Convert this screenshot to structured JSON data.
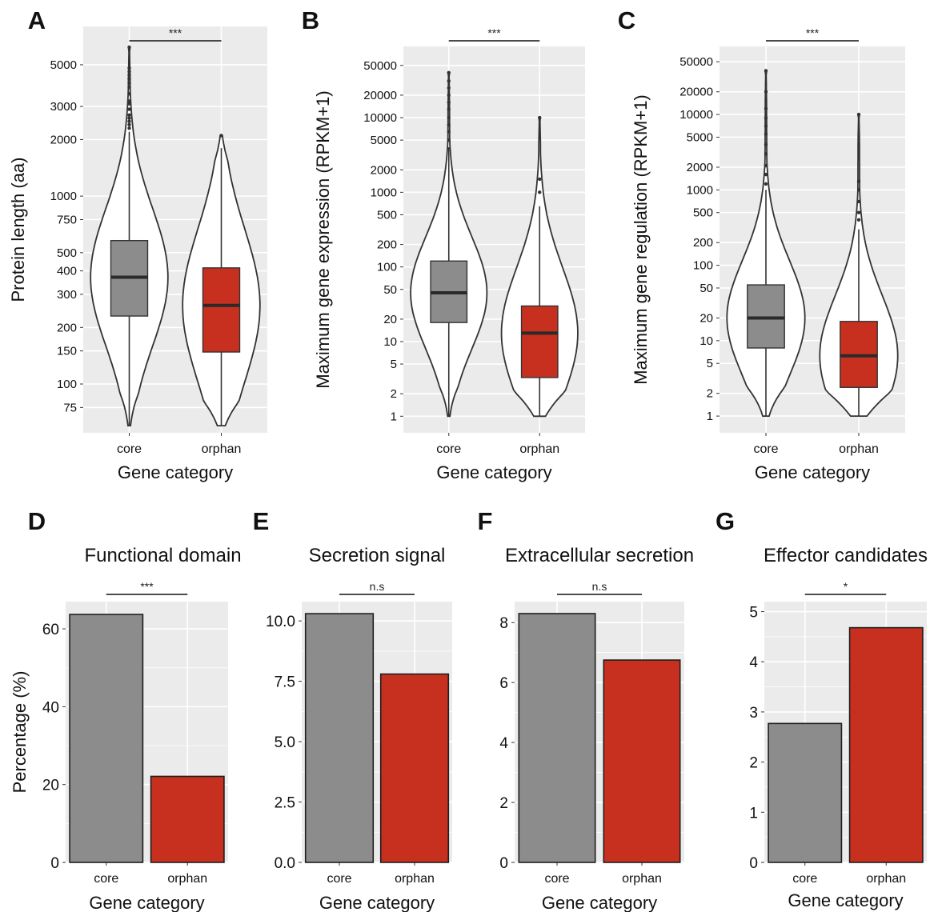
{
  "colors": {
    "core": "#8c8c8c",
    "orphan": "#c7301f",
    "panel_bg": "#ebebeb",
    "grid": "#ffffff",
    "outline": "#333333"
  },
  "panels": [
    {
      "letter": "A"
    },
    {
      "letter": "B"
    },
    {
      "letter": "C"
    },
    {
      "letter": "D"
    },
    {
      "letter": "E"
    },
    {
      "letter": "F"
    },
    {
      "letter": "G"
    }
  ],
  "chart_data": [
    {
      "panel": "A",
      "type": "violin",
      "title": "",
      "xlabel": "Gene category",
      "ylabel": "Protein length (aa)",
      "yscale": "log",
      "categories": [
        "core",
        "orphan"
      ],
      "yticks": [
        75,
        100,
        150,
        200,
        300,
        400,
        500,
        750,
        1000,
        2000,
        3000,
        5000
      ],
      "yticklabels": [
        "75",
        "100",
        "150",
        "200",
        "300",
        "400",
        "500",
        "750",
        "1000",
        "2000",
        "3000",
        "5000"
      ],
      "ylim": [
        55,
        8000
      ],
      "boxplots": [
        {
          "category": "core",
          "q1": 230,
          "median": 370,
          "q3": 580,
          "whisker_low": 60,
          "whisker_high": 2200
        },
        {
          "category": "orphan",
          "q1": 148,
          "median": 262,
          "q3": 415,
          "whisker_low": 60,
          "whisker_high": 1800
        }
      ],
      "violin_max": [
        6200,
        2100
      ],
      "outliers": [
        {
          "category": "core",
          "values": [
            2300,
            2400,
            2500,
            2600,
            2700,
            2900,
            3100,
            3200,
            3500,
            3800,
            4000,
            4200,
            4400,
            4600,
            4800,
            6200
          ]
        },
        {
          "category": "orphan",
          "values": [
            2100
          ]
        }
      ],
      "significance": "***"
    },
    {
      "panel": "B",
      "type": "violin",
      "title": "",
      "xlabel": "Gene category",
      "ylabel": "Maximum gene expression (RPKM+1)",
      "yscale": "log",
      "categories": [
        "core",
        "orphan"
      ],
      "yticks": [
        1,
        2,
        5,
        10,
        20,
        50,
        100,
        200,
        500,
        1000,
        2000,
        5000,
        10000,
        20000,
        50000
      ],
      "yticklabels": [
        "1",
        "2",
        "5",
        "10",
        "20",
        "50",
        "100",
        "200",
        "500",
        "1000",
        "2000",
        "5000",
        "10000",
        "20000",
        "50000"
      ],
      "ylim": [
        0.6,
        90000
      ],
      "boxplots": [
        {
          "category": "core",
          "q1": 18,
          "median": 45,
          "q3": 120,
          "whisker_low": 1,
          "whisker_high": 4000
        },
        {
          "category": "orphan",
          "q1": 3.3,
          "median": 13,
          "q3": 30,
          "whisker_low": 1,
          "whisker_high": 650
        }
      ],
      "violin_max": [
        40000,
        10000
      ],
      "outliers": [
        {
          "category": "core",
          "values": [
            5000,
            6500,
            8000,
            10000,
            13000,
            16000,
            20000,
            25000,
            31000,
            40000
          ]
        },
        {
          "category": "orphan",
          "values": [
            1000,
            1500,
            10000
          ]
        }
      ],
      "significance": "***"
    },
    {
      "panel": "C",
      "type": "violin",
      "title": "",
      "xlabel": "Gene category",
      "ylabel": "Maximum gene regulation (RPKM+1)",
      "yscale": "log",
      "categories": [
        "core",
        "orphan"
      ],
      "yticks": [
        1,
        2,
        5,
        10,
        20,
        50,
        100,
        200,
        500,
        1000,
        2000,
        5000,
        10000,
        20000,
        50000
      ],
      "yticklabels": [
        "1",
        "2",
        "5",
        "10",
        "20",
        "50",
        "100",
        "200",
        "500",
        "1000",
        "2000",
        "5000",
        "10000",
        "20000",
        "50000"
      ],
      "ylim": [
        0.6,
        80000
      ],
      "boxplots": [
        {
          "category": "core",
          "q1": 8,
          "median": 20,
          "q3": 55,
          "whisker_low": 1,
          "whisker_high": 1000
        },
        {
          "category": "orphan",
          "q1": 2.4,
          "median": 6.3,
          "q3": 18,
          "whisker_low": 1,
          "whisker_high": 300
        }
      ],
      "violin_max": [
        38000,
        10000
      ],
      "outliers": [
        {
          "category": "core",
          "values": [
            1200,
            1600,
            2100,
            3000,
            4000,
            5500,
            7000,
            9000,
            12000,
            20000,
            38000
          ]
        },
        {
          "category": "orphan",
          "values": [
            400,
            500,
            700,
            1000,
            1300,
            10000
          ]
        }
      ],
      "significance": "***"
    },
    {
      "panel": "D",
      "type": "bar",
      "title": "Functional domain",
      "xlabel": "Gene category",
      "ylabel": "Percentage (%)",
      "categories": [
        "core",
        "orphan"
      ],
      "values": [
        63.7,
        22.1
      ],
      "yticks": [
        0,
        20,
        40,
        60
      ],
      "yticklabels": [
        "0",
        "20",
        "40",
        "60"
      ],
      "ylim": [
        0,
        67
      ],
      "significance": "***"
    },
    {
      "panel": "E",
      "type": "bar",
      "title": "Secretion signal",
      "xlabel": "Gene category",
      "ylabel": "",
      "categories": [
        "core",
        "orphan"
      ],
      "values": [
        10.3,
        7.8
      ],
      "yticks": [
        0,
        2.5,
        5,
        7.5,
        10
      ],
      "yticklabels": [
        "0.0",
        "2.5",
        "5.0",
        "7.5",
        "10.0"
      ],
      "ylim": [
        0,
        10.8
      ],
      "significance": "n.s"
    },
    {
      "panel": "F",
      "type": "bar",
      "title": "Extracellular secretion",
      "xlabel": "Gene category",
      "ylabel": "",
      "categories": [
        "core",
        "orphan"
      ],
      "values": [
        8.3,
        6.75
      ],
      "yticks": [
        0,
        2,
        4,
        6,
        8
      ],
      "yticklabels": [
        "0",
        "2",
        "4",
        "6",
        "8"
      ],
      "ylim": [
        0,
        8.7
      ],
      "significance": "n.s"
    },
    {
      "panel": "G",
      "type": "bar",
      "title": "Effector candidates",
      "xlabel": "Gene category",
      "ylabel": "",
      "categories": [
        "core",
        "orphan"
      ],
      "values": [
        2.77,
        4.68
      ],
      "yticks": [
        0,
        1,
        2,
        3,
        4,
        5
      ],
      "yticklabels": [
        "0",
        "1",
        "2",
        "3",
        "4",
        "5"
      ],
      "ylim": [
        0,
        5.2
      ],
      "significance": "*"
    }
  ]
}
